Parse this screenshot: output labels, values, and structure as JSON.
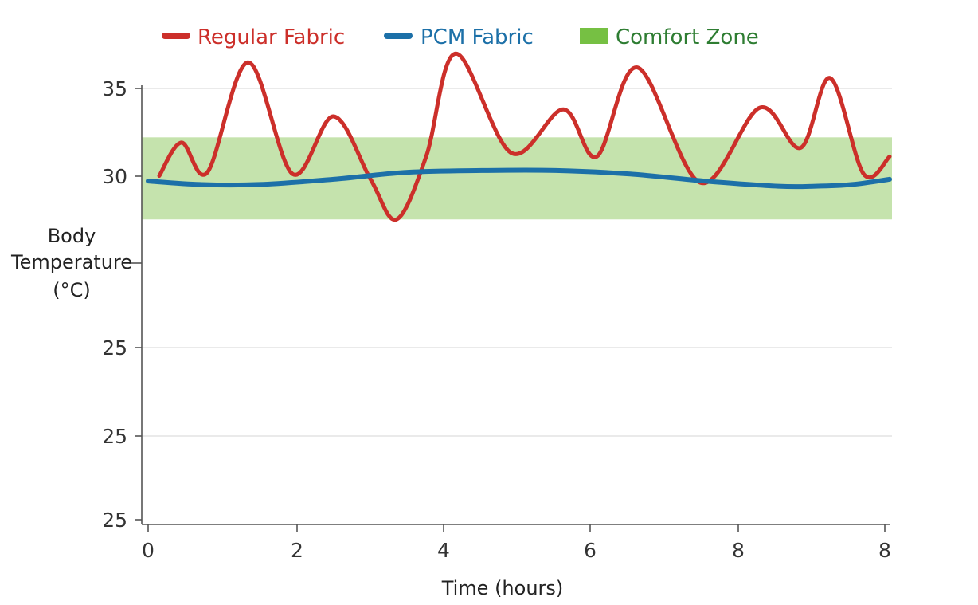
{
  "colors": {
    "regular": "#cc2f2a",
    "pcm": "#1c70a8",
    "comfort_fill": "#c5e3ad",
    "comfort_swatch": "#76c043",
    "comfort_text": "#2e7d32",
    "grid": "#dddddd",
    "axis": "#555555"
  },
  "chart_data": {
    "type": "line",
    "xlabel": "Time (hours)",
    "ylabel": [
      "Body",
      "Temperature",
      "(°C)"
    ],
    "x_tick_labels": [
      "0",
      "2",
      "4",
      "6",
      "8",
      "8"
    ],
    "y_tick_labels": [
      "35",
      "30",
      "25",
      "25",
      "25"
    ],
    "grid": true,
    "legend_position": "top",
    "comfort_zone": {
      "name": "Comfort Zone",
      "low": 27.5,
      "high": 32.2
    },
    "series": [
      {
        "name": "Regular Fabric",
        "color_key": "regular",
        "x": [
          0.15,
          0.45,
          0.8,
          1.35,
          1.95,
          2.5,
          3.0,
          3.35,
          3.75,
          4.15,
          4.9,
          5.6,
          6.05,
          6.6,
          7.45,
          8.25,
          8.8,
          9.2,
          9.65,
          10.0
        ],
        "y": [
          30.0,
          31.9,
          30.2,
          36.5,
          30.1,
          33.4,
          29.8,
          27.5,
          31.1,
          37.0,
          31.3,
          33.8,
          31.1,
          36.2,
          29.6,
          33.9,
          31.6,
          35.6,
          30.1,
          31.1
        ]
      },
      {
        "name": "PCM Fabric",
        "color_key": "pcm",
        "x": [
          0.0,
          0.7,
          1.5,
          2.5,
          3.5,
          4.5,
          5.5,
          6.5,
          7.5,
          8.5,
          9.0,
          9.5,
          10.0
        ],
        "y": [
          29.7,
          29.5,
          29.5,
          29.8,
          30.2,
          30.3,
          30.3,
          30.1,
          29.7,
          29.4,
          29.4,
          29.5,
          29.8
        ]
      }
    ]
  }
}
